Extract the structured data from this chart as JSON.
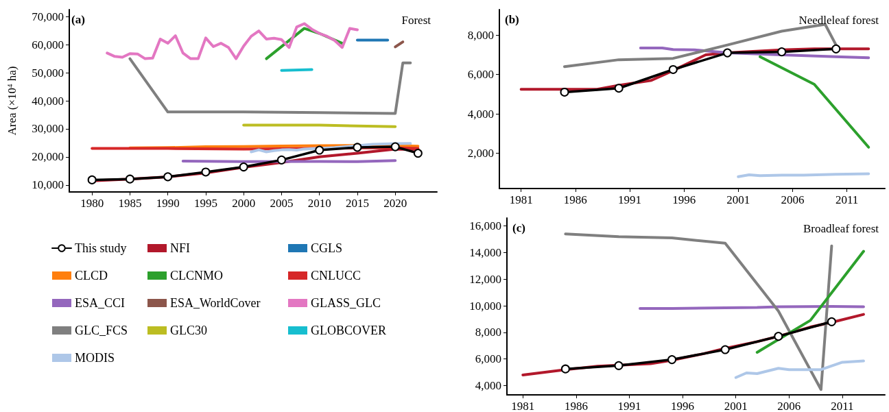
{
  "chart_data": [
    {
      "type": "line",
      "title": "Forest",
      "annotations": [
        "(a)"
      ],
      "ylabel": "Area (×10$^{4}$ ha)",
      "xlim": [
        1977,
        2025.5
      ],
      "ylim": [
        7500,
        72500
      ],
      "xticks": [
        1980,
        1985,
        1990,
        1995,
        2000,
        2005,
        2010,
        2015,
        2020
      ],
      "yticks": [
        {
          "value": 10000,
          "label": "10,000"
        },
        {
          "value": 20000,
          "label": "20,000"
        },
        {
          "value": 30000,
          "label": "30,000"
        },
        {
          "value": 40000,
          "label": "40,000"
        },
        {
          "value": 50000,
          "label": "50,000"
        },
        {
          "value": 60000,
          "label": "60,000"
        },
        {
          "value": 70000,
          "label": "70,000"
        }
      ],
      "grid": false,
      "legend": "bottom",
      "series": [
        {
          "name": "This study",
          "color": "#000000",
          "marker": "circle",
          "x": [
            1980,
            1985,
            1990,
            1995,
            2000,
            2005,
            2010,
            2015,
            2020,
            2023
          ],
          "values": [
            11800,
            12100,
            12900,
            14600,
            16400,
            18900,
            22400,
            23400,
            23600,
            21300
          ]
        },
        {
          "name": "NFI",
          "color": "#b2182b",
          "x": [
            1980,
            1985,
            1990,
            1995,
            2000,
            2005,
            2010,
            2015,
            2020,
            2023
          ],
          "values": [
            11500,
            12100,
            12900,
            14300,
            16300,
            18000,
            20000,
            21300,
            22800,
            22700
          ]
        },
        {
          "name": "CGLS",
          "color": "#1f77b4",
          "x": [
            2015,
            2019
          ],
          "values": [
            61600,
            61600
          ]
        },
        {
          "name": "CLCD",
          "color": "#ff7f0e",
          "x": [
            1985,
            1990,
            1995,
            2000,
            2005,
            2010,
            2015,
            2020,
            2023
          ],
          "values": [
            23200,
            23300,
            23600,
            23700,
            23900,
            24000,
            24100,
            24000,
            23800
          ]
        },
        {
          "name": "CLCNMO",
          "color": "#2ca02c",
          "x": [
            2003,
            2008,
            2010,
            2013
          ],
          "values": [
            55000,
            65800,
            64000,
            60500
          ]
        },
        {
          "name": "CNLUCC",
          "color": "#d62728",
          "x": [
            1980,
            1990,
            2000,
            2010,
            2015,
            2020,
            2023
          ],
          "values": [
            23000,
            23000,
            22800,
            23000,
            23200,
            23200,
            23000
          ]
        },
        {
          "name": "ESA_CCI",
          "color": "#9467bd",
          "x": [
            1992,
            2000,
            2010,
            2015,
            2020
          ],
          "values": [
            18500,
            18300,
            18400,
            18300,
            18700
          ]
        },
        {
          "name": "ESA_WorldCover",
          "color": "#8c564b",
          "x": [
            2020,
            2021
          ],
          "values": [
            59200,
            61000
          ]
        },
        {
          "name": "GLASS_GLC",
          "color": "#e377c2",
          "x": [
            1982,
            1983,
            1984,
            1985,
            1986,
            1987,
            1988,
            1989,
            1990,
            1991,
            1992,
            1993,
            1994,
            1995,
            1996,
            1997,
            1998,
            1999,
            2000,
            2001,
            2002,
            2003,
            2004,
            2005,
            2006,
            2007,
            2008,
            2009,
            2010,
            2011,
            2012,
            2013,
            2014,
            2015
          ],
          "values": [
            57000,
            55800,
            55500,
            56800,
            56700,
            55000,
            55200,
            62000,
            60500,
            63200,
            57000,
            55000,
            55000,
            62400,
            59300,
            60500,
            59000,
            55000,
            59500,
            63000,
            64900,
            62000,
            62300,
            61800,
            59000,
            66300,
            67500,
            65500,
            64000,
            63000,
            61500,
            59000,
            65800,
            65300
          ]
        },
        {
          "name": "GLC_FCS",
          "color": "#7f7f7f",
          "x": [
            1985,
            1990,
            2000,
            2010,
            2020,
            2021,
            2022
          ],
          "values": [
            55000,
            36000,
            36000,
            35800,
            35500,
            53500,
            53500
          ]
        },
        {
          "name": "GLC30",
          "color": "#bcbd22",
          "x": [
            2000,
            2010,
            2020
          ],
          "values": [
            31300,
            31300,
            30800
          ]
        },
        {
          "name": "GLOBCOVER",
          "color": "#17becf",
          "x": [
            2005,
            2009
          ],
          "values": [
            50800,
            51100
          ]
        },
        {
          "name": "MODIS",
          "color": "#aec7e8",
          "x": [
            2001,
            2002,
            2003,
            2004,
            2005,
            2006,
            2007,
            2008,
            2010,
            2012,
            2015,
            2017,
            2020,
            2022
          ],
          "values": [
            21800,
            22500,
            21800,
            22200,
            22500,
            22600,
            22400,
            22800,
            23000,
            23300,
            24000,
            24500,
            24700,
            24800
          ]
        }
      ]
    },
    {
      "type": "line",
      "title": "Needleleaf forest",
      "annotations": [
        "(b)"
      ],
      "xlim": [
        1979,
        2014.5
      ],
      "ylim": [
        200,
        9300
      ],
      "xticks": [
        1981,
        1986,
        1991,
        1996,
        2001,
        2006,
        2011
      ],
      "yticks": [
        {
          "value": 2000,
          "label": "2,000"
        },
        {
          "value": 4000,
          "label": "4,000"
        },
        {
          "value": 6000,
          "label": "6,000"
        },
        {
          "value": 8000,
          "label": "8,000"
        }
      ],
      "grid": false,
      "series": [
        {
          "color": "#b2182b",
          "x": [
            1981,
            1988,
            1990,
            1993,
            1995,
            1998,
            2000,
            2005,
            2008,
            2013
          ],
          "values": [
            5250,
            5250,
            5450,
            5700,
            6200,
            7000,
            7100,
            7250,
            7300,
            7300
          ]
        },
        {
          "color": "#9467bd",
          "x": [
            1992,
            1994,
            1995,
            1997,
            2000,
            2005,
            2010,
            2013
          ],
          "values": [
            7350,
            7350,
            7270,
            7250,
            7100,
            7000,
            6900,
            6850
          ]
        },
        {
          "color": "#7f7f7f",
          "x": [
            1985,
            1990,
            1995,
            2000,
            2005,
            2009,
            2010
          ],
          "values": [
            6400,
            6750,
            6820,
            7500,
            8200,
            8550,
            7500
          ]
        },
        {
          "color": "#2ca02c",
          "x": [
            2003,
            2008,
            2013
          ],
          "values": [
            6900,
            5500,
            2300
          ]
        },
        {
          "color": "#aec7e8",
          "x": [
            2001,
            2002,
            2003,
            2005,
            2007,
            2010,
            2013
          ],
          "values": [
            800,
            900,
            850,
            880,
            880,
            920,
            950
          ]
        },
        {
          "color": "#000000",
          "marker": "circle",
          "x": [
            1985,
            1990,
            1995,
            2000,
            2005,
            2010
          ],
          "values": [
            5100,
            5300,
            6250,
            7100,
            7150,
            7300
          ]
        }
      ]
    },
    {
      "type": "line",
      "title": "Broadleaf forest",
      "annotations": [
        "(c)"
      ],
      "xlim": [
        1979.5,
        2015
      ],
      "ylim": [
        3300,
        16600
      ],
      "xticks": [
        1981,
        1986,
        1991,
        1996,
        2001,
        2006,
        2011
      ],
      "yticks": [
        {
          "value": 4000,
          "label": "4,000"
        },
        {
          "value": 6000,
          "label": "6,000"
        },
        {
          "value": 8000,
          "label": "8,000"
        },
        {
          "value": 10000,
          "label": "10,000"
        },
        {
          "value": 12000,
          "label": "12,000"
        },
        {
          "value": 14000,
          "label": "14,000"
        },
        {
          "value": 16000,
          "label": "16,000"
        }
      ],
      "grid": false,
      "series": [
        {
          "color": "#b2182b",
          "x": [
            1981,
            1985,
            1988,
            1993,
            1995,
            1998,
            2000,
            2003,
            2005,
            2008,
            2010,
            2013
          ],
          "values": [
            4800,
            5200,
            5450,
            5650,
            5900,
            6400,
            6800,
            7300,
            7700,
            8400,
            8750,
            9350
          ]
        },
        {
          "color": "#9467bd",
          "x": [
            1992,
            1995,
            2000,
            2003,
            2005,
            2010,
            2013
          ],
          "values": [
            9800,
            9800,
            9850,
            9870,
            9930,
            9950,
            9920
          ]
        },
        {
          "color": "#7f7f7f",
          "x": [
            1985,
            1990,
            1995,
            2000,
            2005,
            2009,
            2010
          ],
          "values": [
            15400,
            15200,
            15100,
            14700,
            9600,
            3700,
            14500
          ]
        },
        {
          "color": "#2ca02c",
          "x": [
            2003,
            2008,
            2013
          ],
          "values": [
            6500,
            8900,
            14100
          ]
        },
        {
          "color": "#aec7e8",
          "x": [
            2001,
            2002,
            2003,
            2005,
            2006,
            2008,
            2009,
            2011,
            2013
          ],
          "values": [
            4600,
            4950,
            4900,
            5300,
            5200,
            5200,
            5200,
            5750,
            5850
          ]
        },
        {
          "color": "#000000",
          "marker": "circle",
          "x": [
            1985,
            1990,
            1995,
            2000,
            2005,
            2010
          ],
          "values": [
            5250,
            5500,
            5950,
            6700,
            7700,
            8800
          ]
        }
      ]
    }
  ]
}
